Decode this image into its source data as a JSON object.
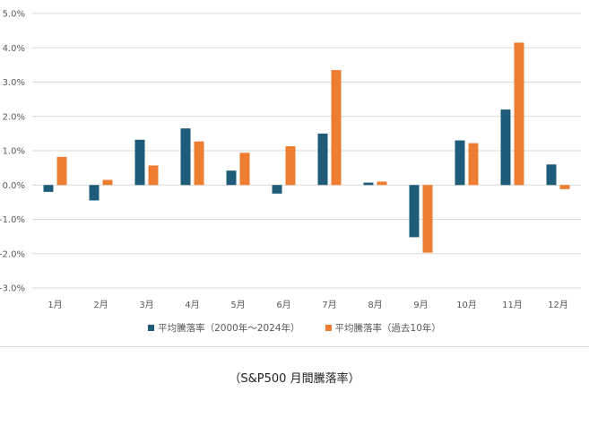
{
  "chart_data": {
    "type": "bar",
    "categories": [
      "1月",
      "2月",
      "3月",
      "4月",
      "5月",
      "6月",
      "7月",
      "8月",
      "9月",
      "10月",
      "11月",
      "12月"
    ],
    "series": [
      {
        "name": "平均騰落率（2000年〜2024年）",
        "color": "#1f5c7a",
        "values": [
          -0.2,
          -0.45,
          1.32,
          1.65,
          0.42,
          -0.25,
          1.5,
          0.07,
          -1.52,
          1.3,
          2.2,
          0.6
        ]
      },
      {
        "name": "平均騰落率（過去10年）",
        "color": "#ed7d31",
        "values": [
          0.82,
          0.15,
          0.57,
          1.27,
          0.94,
          1.13,
          3.35,
          0.1,
          -1.97,
          1.22,
          4.15,
          -0.12
        ]
      }
    ],
    "ylim": [
      -3.0,
      5.0
    ],
    "yticks": [
      "-3.0%",
      "-2.0%",
      "-1.0%",
      "0.0%",
      "1.0%",
      "2.0%",
      "3.0%",
      "4.0%",
      "5.0%"
    ],
    "grid": true,
    "legend_position": "bottom"
  },
  "caption": "（S&P500 月間騰落率）"
}
